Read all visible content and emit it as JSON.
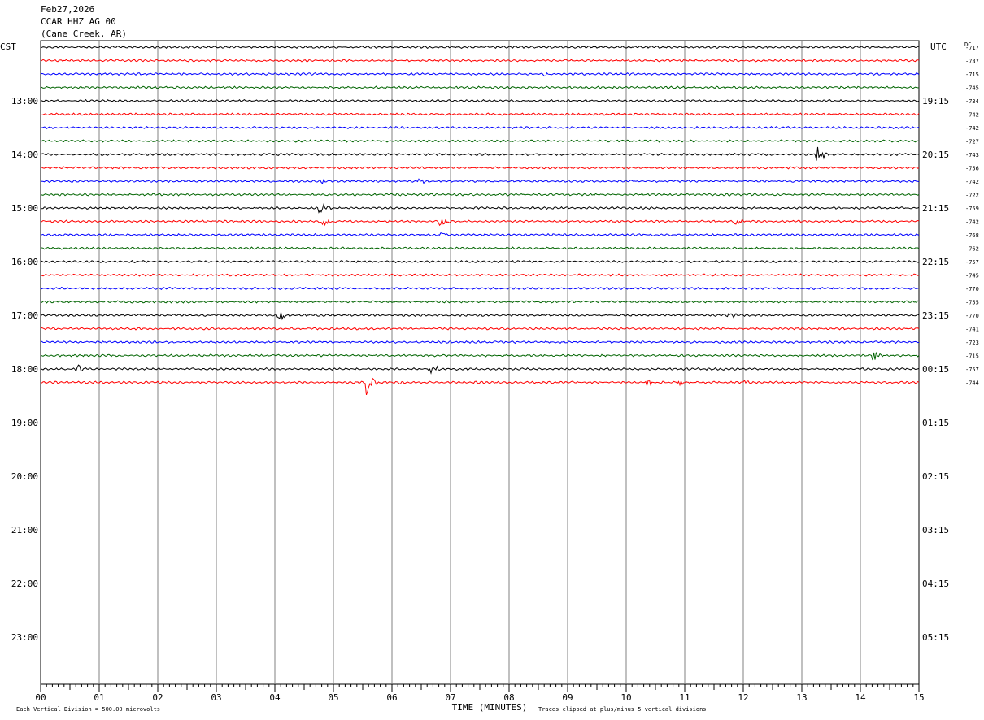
{
  "header": {
    "date": "Feb27,2026",
    "station": "CCAR HHZ AG 00",
    "location": "(Cane Creek, AR)"
  },
  "labels": {
    "left_zone": "CST",
    "right_zone": "UTC",
    "dc": "DC",
    "xlabel": "TIME (MINUTES)",
    "scale_note": "Each Vertical Division =  500.00 microvolts",
    "clip_note": "Traces clipped at plus/minus 5 vertical divisions"
  },
  "colors": {
    "trace_cycle": [
      "#000000",
      "#ff0000",
      "#0000ff",
      "#006400"
    ],
    "grid": "#808080",
    "background": "#ffffff"
  },
  "chart_data": {
    "type": "line",
    "subtype": "helicorder",
    "xlim": [
      0,
      15
    ],
    "x_ticks": [
      "00",
      "01",
      "02",
      "03",
      "04",
      "05",
      "06",
      "07",
      "08",
      "09",
      "10",
      "11",
      "12",
      "13",
      "14",
      "15"
    ],
    "minutes_per_line": 15,
    "left_time_labels": [
      "13:00",
      "14:00",
      "15:00",
      "16:00",
      "17:00",
      "18:00",
      "19:00",
      "20:00",
      "21:00",
      "22:00",
      "23:00"
    ],
    "right_time_labels": [
      "19:15",
      "20:15",
      "21:15",
      "22:15",
      "23:15",
      "00:15",
      "01:15",
      "02:15",
      "03:15",
      "04:15",
      "05:15"
    ],
    "traces": [
      {
        "dc": "-717",
        "events": []
      },
      {
        "dc": "-737",
        "events": []
      },
      {
        "dc": "-715",
        "events": [
          {
            "minute": 8.6,
            "amp": 3
          }
        ]
      },
      {
        "dc": "-745",
        "events": []
      },
      {
        "dc": "-734",
        "events": []
      },
      {
        "dc": "-742",
        "events": []
      },
      {
        "dc": "-742",
        "events": []
      },
      {
        "dc": "-727",
        "events": []
      },
      {
        "dc": "-743",
        "events": [
          {
            "minute": 13.25,
            "amp": 16
          }
        ]
      },
      {
        "dc": "-756",
        "events": []
      },
      {
        "dc": "-742",
        "events": [
          {
            "minute": 4.75,
            "amp": 4
          },
          {
            "minute": 6.45,
            "amp": 5
          }
        ]
      },
      {
        "dc": "-722",
        "events": []
      },
      {
        "dc": "-759",
        "events": [
          {
            "minute": 4.75,
            "amp": 14
          }
        ]
      },
      {
        "dc": "-742",
        "events": [
          {
            "minute": 4.8,
            "amp": 12
          },
          {
            "minute": 6.8,
            "amp": 11
          },
          {
            "minute": 11.85,
            "amp": 8
          }
        ]
      },
      {
        "dc": "-768",
        "events": [
          {
            "minute": 6.8,
            "amp": 5
          }
        ]
      },
      {
        "dc": "-762",
        "events": []
      },
      {
        "dc": "-757",
        "events": []
      },
      {
        "dc": "-745",
        "events": []
      },
      {
        "dc": "-770",
        "events": []
      },
      {
        "dc": "-755",
        "events": []
      },
      {
        "dc": "-770",
        "events": [
          {
            "minute": 4.05,
            "amp": 12
          },
          {
            "minute": 11.75,
            "amp": 4
          }
        ]
      },
      {
        "dc": "-741",
        "events": []
      },
      {
        "dc": "-723",
        "events": []
      },
      {
        "dc": "-715",
        "events": [
          {
            "minute": 14.2,
            "amp": 10
          }
        ]
      },
      {
        "dc": "-757",
        "events": [
          {
            "minute": 0.6,
            "amp": 8
          },
          {
            "minute": 6.65,
            "amp": 12
          }
        ]
      },
      {
        "dc": "-744",
        "events": [
          {
            "minute": 5.55,
            "amp": 22
          },
          {
            "minute": 6.1,
            "amp": 6
          },
          {
            "minute": 10.35,
            "amp": 7
          },
          {
            "minute": 10.9,
            "amp": 6
          },
          {
            "minute": 12.0,
            "amp": 4
          }
        ]
      }
    ]
  }
}
